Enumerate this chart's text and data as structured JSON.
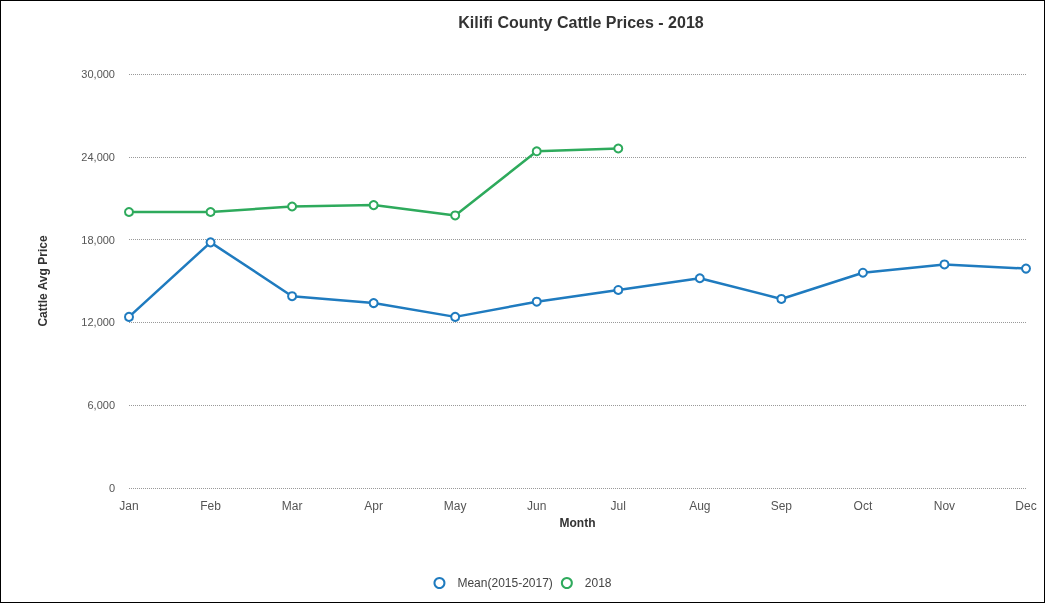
{
  "chart_data": {
    "type": "line",
    "title": "Kilifi County Cattle Prices - 2018",
    "xlabel": "Month",
    "ylabel": "Cattle Avg Price",
    "categories": [
      "Jan",
      "Feb",
      "Mar",
      "Apr",
      "May",
      "Jun",
      "Jul",
      "Aug",
      "Sep",
      "Oct",
      "Nov",
      "Dec"
    ],
    "series": [
      {
        "name": "Mean(2015-2017)",
        "color": "#1f7bbf",
        "values": [
          12400,
          17800,
          13900,
          13400,
          12400,
          13500,
          14350,
          15200,
          13700,
          15600,
          16200,
          15900
        ]
      },
      {
        "name": "2018",
        "color": "#2eaa5c",
        "values": [
          20000,
          20000,
          20400,
          20500,
          19750,
          24400,
          24600,
          null,
          null,
          null,
          null,
          null
        ]
      }
    ],
    "ylim": [
      0,
      30000
    ],
    "yticks": [
      {
        "value": 0,
        "label": "0"
      },
      {
        "value": 6000,
        "label": "6,000"
      },
      {
        "value": 12000,
        "label": "12,000"
      },
      {
        "value": 18000,
        "label": "18,000"
      },
      {
        "value": 24000,
        "label": "24,000"
      },
      {
        "value": 30000,
        "label": "30,000"
      }
    ],
    "grid": "y",
    "legend": "bottom",
    "marker": "circle",
    "line_style": "solid"
  }
}
